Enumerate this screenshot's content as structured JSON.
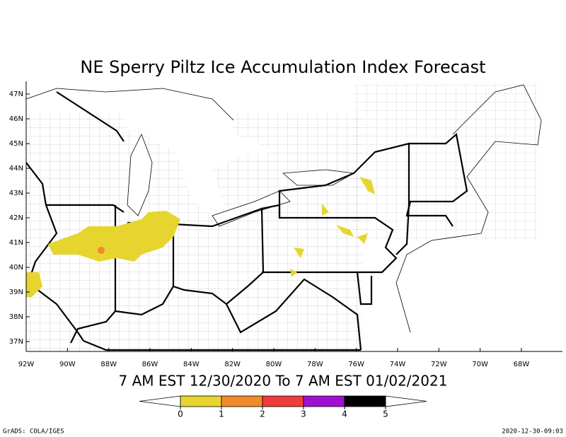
{
  "header": {
    "title": "NE Sperry Piltz Ice Accumulation Index Forecast"
  },
  "map": {
    "lat_labels": [
      "47N",
      "46N",
      "45N",
      "44N",
      "43N",
      "42N",
      "41N",
      "40N",
      "39N",
      "38N",
      "37N"
    ],
    "lon_labels": [
      "92W",
      "90W",
      "88W",
      "86W",
      "84W",
      "82W",
      "80W",
      "78W",
      "76W",
      "74W",
      "72W",
      "70W",
      "68W"
    ]
  },
  "subtitle": "7 AM EST 12/30/2020 To 7 AM EST 01/02/2021",
  "colorbar": {
    "ticks": [
      0,
      1,
      2,
      3,
      4,
      5
    ],
    "colors": [
      "#e6d52e",
      "#f08a2a",
      "#f03c3c",
      "#a010d0",
      "#000000"
    ]
  },
  "footer": {
    "left": "GrADS: COLA/IGES",
    "right": "2020-12-30-09:03"
  }
}
